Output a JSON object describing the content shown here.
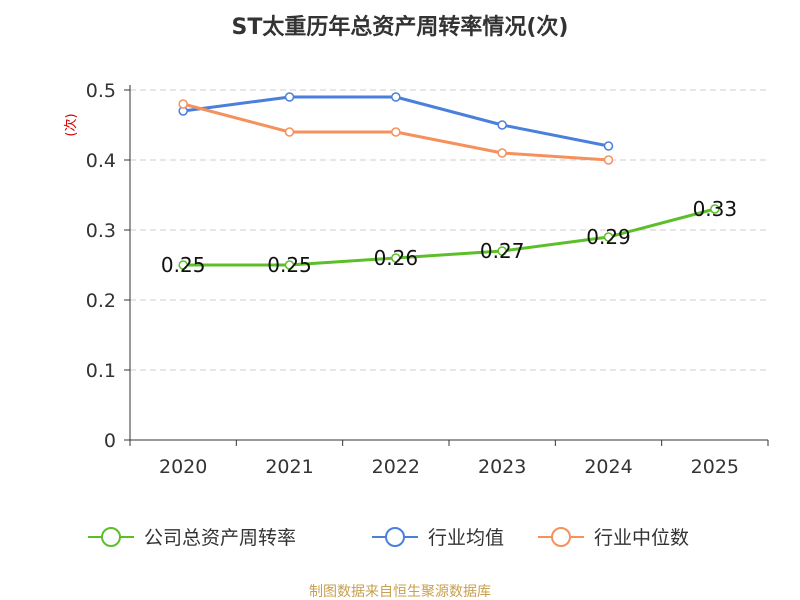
{
  "chart_data": {
    "type": "line",
    "title": "ST太重历年总资产周转率情况(次)",
    "ylabel": "(次)",
    "xlabel": "",
    "categories": [
      "2020",
      "2021",
      "2022",
      "2023",
      "2024",
      "2025"
    ],
    "ylim": [
      0,
      0.5
    ],
    "yticks": [
      "0",
      "0.1",
      "0.2",
      "0.3",
      "0.4",
      "0.5"
    ],
    "grid": true,
    "legend_position": "bottom",
    "series": [
      {
        "name": "公司总资产周转率",
        "color": "#5cbf2a",
        "values": [
          0.25,
          0.25,
          0.26,
          0.27,
          0.29,
          0.33
        ],
        "labels": [
          "0.25",
          "0.25",
          "0.26",
          "0.27",
          "0.29",
          "0.33"
        ]
      },
      {
        "name": "行业均值",
        "color": "#4a7fdc",
        "values": [
          0.47,
          0.49,
          0.49,
          0.45,
          0.42,
          null
        ]
      },
      {
        "name": "行业中位数",
        "color": "#f5915c",
        "values": [
          0.48,
          0.44,
          0.44,
          0.41,
          0.4,
          null
        ]
      }
    ]
  },
  "source_note": "制图数据来自恒生聚源数据库"
}
